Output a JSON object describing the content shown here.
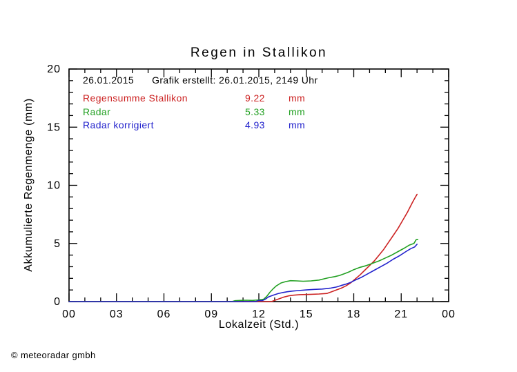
{
  "title": "Regen in Stallikon",
  "annotation": {
    "date": "26.01.2015",
    "created": "Grafik erstellt: 26.01.2015, 2149 Uhr"
  },
  "copyright": "© meteoradar gmbh",
  "chart_data": {
    "type": "line",
    "title": "Regen in Stallikon",
    "xlabel": "Lokalzeit (Std.)",
    "ylabel": "Akkumulierte Regenmenge (mm)",
    "xlim": [
      0,
      24
    ],
    "ylim": [
      0,
      20
    ],
    "grid": false,
    "legend_position": "top-left-inside",
    "x_major_ticks": [
      0,
      3,
      6,
      9,
      12,
      15,
      18,
      21,
      24
    ],
    "x_tick_labels": [
      "00",
      "03",
      "06",
      "09",
      "12",
      "15",
      "18",
      "21",
      "00"
    ],
    "x_minor_step": 1,
    "y_major_ticks": [
      0,
      5,
      10,
      15,
      20
    ],
    "y_tick_labels": [
      "0",
      "5",
      "10",
      "15",
      "20"
    ],
    "y_minor_step": 1,
    "series": [
      {
        "name": "Regensumme Stallikon",
        "total": "9.22",
        "unit": "mm",
        "color": "#cc2222",
        "points": [
          [
            0,
            0
          ],
          [
            12.8,
            0
          ],
          [
            13.0,
            0.1
          ],
          [
            13.3,
            0.25
          ],
          [
            13.6,
            0.4
          ],
          [
            13.9,
            0.5
          ],
          [
            14.2,
            0.55
          ],
          [
            14.6,
            0.6
          ],
          [
            15.2,
            0.62
          ],
          [
            15.8,
            0.65
          ],
          [
            16.3,
            0.7
          ],
          [
            16.6,
            0.85
          ],
          [
            16.9,
            1.0
          ],
          [
            17.2,
            1.15
          ],
          [
            17.5,
            1.35
          ],
          [
            17.8,
            1.6
          ],
          [
            18.1,
            1.95
          ],
          [
            18.4,
            2.3
          ],
          [
            18.7,
            2.7
          ],
          [
            19.0,
            3.1
          ],
          [
            19.3,
            3.5
          ],
          [
            19.6,
            4.0
          ],
          [
            19.9,
            4.5
          ],
          [
            20.2,
            5.1
          ],
          [
            20.5,
            5.7
          ],
          [
            20.8,
            6.3
          ],
          [
            21.1,
            7.0
          ],
          [
            21.4,
            7.7
          ],
          [
            21.7,
            8.5
          ],
          [
            21.9,
            9.0
          ],
          [
            22.0,
            9.22
          ]
        ]
      },
      {
        "name": "Radar",
        "total": "5.33",
        "unit": "mm",
        "color": "#22a022",
        "points": [
          [
            0,
            0
          ],
          [
            10.3,
            0
          ],
          [
            10.5,
            0.08
          ],
          [
            10.8,
            0.1
          ],
          [
            11.2,
            0.12
          ],
          [
            11.6,
            0.1
          ],
          [
            12.0,
            0.15
          ],
          [
            12.3,
            0.2
          ],
          [
            12.5,
            0.45
          ],
          [
            12.7,
            0.8
          ],
          [
            12.9,
            1.1
          ],
          [
            13.1,
            1.35
          ],
          [
            13.4,
            1.6
          ],
          [
            13.7,
            1.72
          ],
          [
            14.0,
            1.8
          ],
          [
            14.4,
            1.78
          ],
          [
            14.8,
            1.75
          ],
          [
            15.3,
            1.78
          ],
          [
            15.8,
            1.85
          ],
          [
            16.1,
            1.95
          ],
          [
            16.4,
            2.05
          ],
          [
            16.8,
            2.15
          ],
          [
            17.1,
            2.25
          ],
          [
            17.4,
            2.4
          ],
          [
            17.7,
            2.55
          ],
          [
            18.0,
            2.75
          ],
          [
            18.4,
            2.95
          ],
          [
            18.8,
            3.1
          ],
          [
            19.2,
            3.3
          ],
          [
            19.6,
            3.5
          ],
          [
            20.0,
            3.75
          ],
          [
            20.4,
            4.0
          ],
          [
            20.8,
            4.3
          ],
          [
            21.2,
            4.6
          ],
          [
            21.5,
            4.85
          ],
          [
            21.8,
            5.0
          ],
          [
            21.95,
            5.33
          ],
          [
            22.05,
            5.33
          ]
        ]
      },
      {
        "name": "Radar korrigiert",
        "total": "4.93",
        "unit": "mm",
        "color": "#2222cc",
        "points": [
          [
            0,
            0
          ],
          [
            11.8,
            0
          ],
          [
            12.0,
            0.1
          ],
          [
            12.2,
            0.08
          ],
          [
            12.4,
            0.2
          ],
          [
            12.6,
            0.4
          ],
          [
            12.9,
            0.55
          ],
          [
            13.2,
            0.68
          ],
          [
            13.5,
            0.78
          ],
          [
            13.8,
            0.85
          ],
          [
            14.1,
            0.9
          ],
          [
            14.5,
            0.95
          ],
          [
            15.0,
            1.0
          ],
          [
            15.5,
            1.05
          ],
          [
            16.0,
            1.08
          ],
          [
            16.5,
            1.15
          ],
          [
            16.9,
            1.25
          ],
          [
            17.2,
            1.38
          ],
          [
            17.5,
            1.5
          ],
          [
            17.8,
            1.65
          ],
          [
            18.1,
            1.85
          ],
          [
            18.5,
            2.1
          ],
          [
            18.9,
            2.4
          ],
          [
            19.3,
            2.7
          ],
          [
            19.7,
            3.0
          ],
          [
            20.1,
            3.3
          ],
          [
            20.5,
            3.65
          ],
          [
            20.9,
            3.95
          ],
          [
            21.3,
            4.3
          ],
          [
            21.6,
            4.55
          ],
          [
            21.85,
            4.7
          ],
          [
            22.0,
            4.93
          ]
        ]
      }
    ]
  }
}
